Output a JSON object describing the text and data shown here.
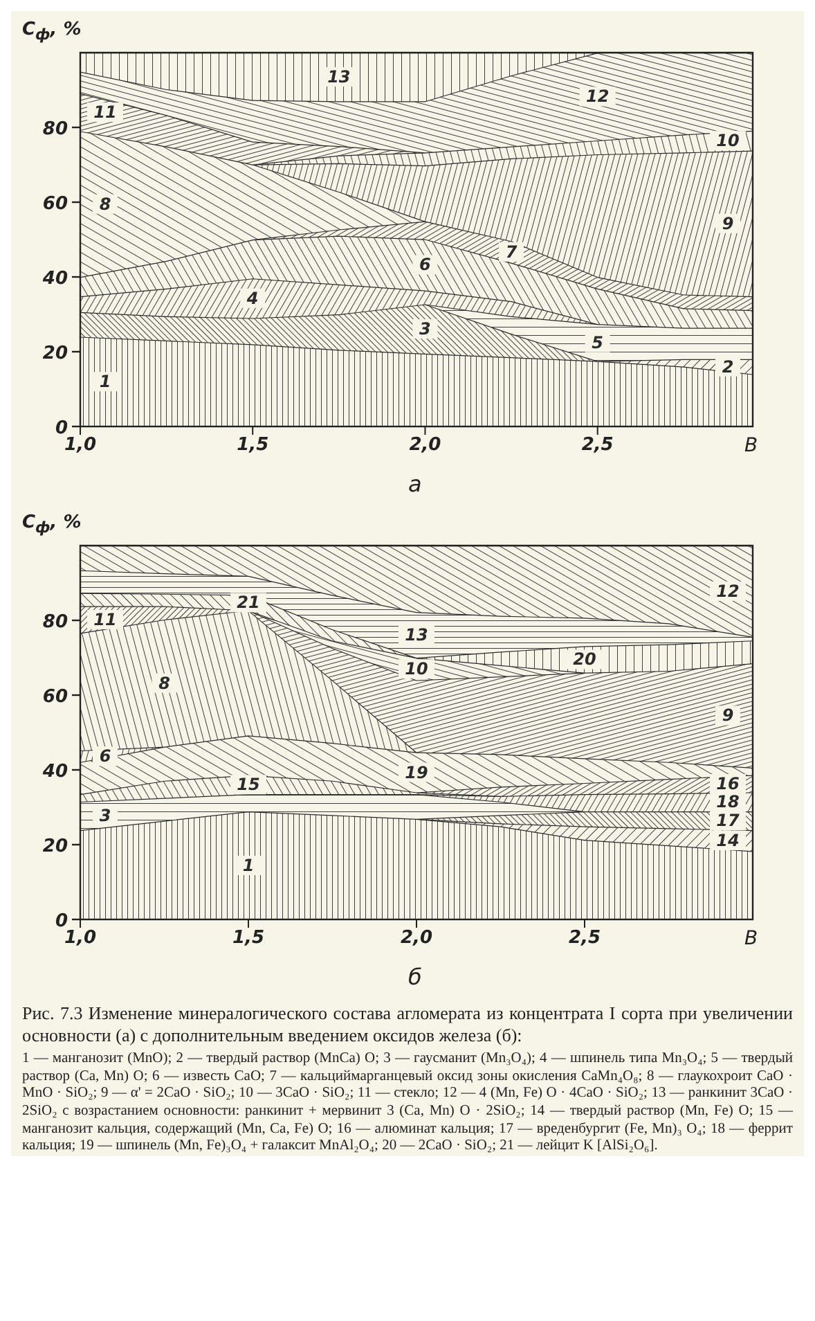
{
  "chart_data": [
    {
      "type": "area",
      "stacked": true,
      "subtitle": "а",
      "xlabel": "В",
      "ylabel": "C$_{ф}$, %",
      "x": [
        1,
        1.25,
        1.5,
        1.75,
        2,
        2.25,
        2.5,
        2.75,
        2.95
      ],
      "xlim": [
        1,
        2.95
      ],
      "xticks": [
        {
          "value": 1,
          "label": "1,0"
        },
        {
          "value": 1.5,
          "label": "1,5"
        },
        {
          "value": 2,
          "label": "2,0"
        },
        {
          "value": 2.5,
          "label": "2,5"
        }
      ],
      "ylim": [
        0,
        100
      ],
      "yticks": [
        0,
        20,
        40,
        60,
        80
      ],
      "series": [
        {
          "name": "1",
          "color": "#2b2b2b",
          "values": [
            24,
            23,
            22,
            20.5,
            19.5,
            18.5,
            17.5,
            16,
            14
          ]
        },
        {
          "name": "2",
          "color": "#2b2b2b",
          "values": [
            null,
            null,
            null,
            null,
            null,
            null,
            0,
            2,
            4
          ]
        },
        {
          "name": "3",
          "color": "#2b2b2b",
          "values": [
            6.6,
            6.5,
            7,
            9.5,
            13.2,
            6.3,
            0,
            null,
            null
          ]
        },
        {
          "name": "5",
          "color": "#2b2b2b",
          "values": [
            null,
            null,
            null,
            null,
            0,
            4.7,
            9.9,
            8.4,
            8.4
          ]
        },
        {
          "name": "4",
          "color": "#2b2b2b",
          "values": [
            4.2,
            7.4,
            10.6,
            8,
            3.7,
            4,
            0,
            null,
            null
          ]
        },
        {
          "name": "6",
          "color": "#2b2b2b",
          "values": [
            5.2,
            7.4,
            10.4,
            13,
            13.7,
            10.3,
            9.5,
            5.2,
            4.7
          ]
        },
        {
          "name": "7",
          "color": "#2b2b2b",
          "values": [
            null,
            null,
            0,
            1.7,
            4.8,
            5.8,
            3.1,
            3.7,
            3.7
          ]
        },
        {
          "name": "8",
          "color": "#2b2b2b",
          "values": [
            39,
            30.6,
            20.1,
            10.1,
            0,
            null,
            null,
            null,
            null
          ]
        },
        {
          "name": "9",
          "color": "#2b2b2b",
          "values": [
            null,
            null,
            0,
            7.6,
            14.9,
            22.1,
            32.8,
            38,
            39
          ]
        },
        {
          "name": "10",
          "color": "#2b2b2b",
          "values": [
            null,
            null,
            0,
            2.1,
            3.5,
            3.2,
            3.7,
            4.8,
            5.3
          ]
        },
        {
          "name": "11",
          "color": "#2b2b2b",
          "values": [
            10.1,
            8.4,
            6.1,
            2.5,
            0,
            null,
            null,
            null,
            null
          ]
        },
        {
          "name": "12",
          "color": "#2b2b2b",
          "values": [
            5.8,
            6.9,
            11.1,
            12,
            13.7,
            19,
            23.5,
            21.9,
            20.9
          ]
        },
        {
          "name": "13",
          "color": "#2b2b2b",
          "values": [
            5.1,
            9.8,
            12.7,
            13,
            13,
            6.1,
            0,
            null,
            null
          ]
        }
      ]
    },
    {
      "type": "area",
      "stacked": true,
      "subtitle": "б",
      "xlabel": "В",
      "ylabel": "C$_{ф}$, %",
      "x": [
        1,
        1.25,
        1.5,
        1.75,
        2,
        2.25,
        2.5,
        2.75,
        3
      ],
      "xlim": [
        1,
        3
      ],
      "xticks": [
        {
          "value": 1,
          "label": "1,0"
        },
        {
          "value": 1.5,
          "label": "1,5"
        },
        {
          "value": 2,
          "label": "2,0"
        },
        {
          "value": 2.5,
          "label": "2,5"
        }
      ],
      "ylim": [
        0,
        100
      ],
      "yticks": [
        0,
        20,
        40,
        60,
        80
      ],
      "series": [
        {
          "name": "1",
          "color": "#2b2b2b",
          "values": [
            23.9,
            26.4,
            28.9,
            27.9,
            26.9,
            24.9,
            21.3,
            19.8,
            18.3
          ]
        },
        {
          "name": "14",
          "color": "#2b2b2b",
          "values": [
            null,
            null,
            null,
            null,
            0,
            0.8,
            3.6,
            4.6,
            5.6
          ]
        },
        {
          "name": "17",
          "color": "#2b2b2b",
          "values": [
            null,
            null,
            null,
            null,
            0,
            2.2,
            4,
            4.5,
            5
          ]
        },
        {
          "name": "3",
          "color": "#2b2b2b",
          "values": [
            7.6,
            6.1,
            4.6,
            5.6,
            6.6,
            3.6,
            0,
            null,
            null
          ]
        },
        {
          "name": "18",
          "color": "#2b2b2b",
          "values": [
            null,
            null,
            null,
            null,
            0,
            1.5,
            4.6,
            4.8,
            5.1
          ]
        },
        {
          "name": "15",
          "color": "#2b2b2b",
          "values": [
            2,
            4.6,
            5.1,
            3.6,
            0.5,
            0,
            null,
            null,
            null
          ]
        },
        {
          "name": "16",
          "color": "#2b2b2b",
          "values": [
            null,
            null,
            null,
            null,
            0,
            2.5,
            3,
            3.9,
            4.6
          ]
        },
        {
          "name": "19",
          "color": "#2b2b2b",
          "values": [
            8.6,
            9.1,
            10.6,
            10.1,
            10.7,
            8.7,
            6.6,
            4.5,
            2
          ]
        },
        {
          "name": "6",
          "color": "#2b2b2b",
          "values": [
            3.1,
            0,
            null,
            null,
            null,
            null,
            null,
            null,
            null
          ]
        },
        {
          "name": "8",
          "color": "#2b2b2b",
          "values": [
            31.4,
            34,
            33.5,
            16.8,
            0,
            null,
            null,
            null,
            null
          ]
        },
        {
          "name": "9",
          "color": "#2b2b2b",
          "values": [
            null,
            null,
            0,
            8.6,
            19.3,
            20.8,
            22.9,
            24.4,
            27.9
          ]
        },
        {
          "name": "10",
          "color": "#2b2b2b",
          "values": [
            null,
            null,
            0,
            2,
            6,
            3,
            0,
            null,
            null
          ]
        },
        {
          "name": "20",
          "color": "#2b2b2b",
          "values": [
            null,
            null,
            null,
            null,
            0,
            3.6,
            7.1,
            7.1,
            6.1
          ]
        },
        {
          "name": "11",
          "color": "#2b2b2b",
          "values": [
            7.2,
            3.6,
            0,
            null,
            null,
            null,
            null,
            null,
            null
          ]
        },
        {
          "name": "21",
          "color": "#2b2b2b",
          "values": [
            3.5,
            3.3,
            4.1,
            3,
            0,
            null,
            null,
            null,
            null
          ]
        },
        {
          "name": "13",
          "color": "#2b2b2b",
          "values": [
            6.1,
            5.5,
            5.1,
            9.2,
            12.2,
            9.6,
            7.6,
            5.6,
            1
          ]
        },
        {
          "name": "12",
          "color": "#2b2b2b",
          "values": [
            6.6,
            7.4,
            8.1,
            13.2,
            17.8,
            18.8,
            19.3,
            20.8,
            24.4
          ]
        }
      ],
      "annotations": [
        "Рис. 7.3 Изменение минералогического состава агломерата из концентрата I сорта при увеличении основности (а) с дополнительным введением оксидов железа (б):",
        "1 — манганозит (MnO); 2 — твердый раствор (MnCa) O; 3 — гаусманит (Mn₃O₄); 4 — шпинель типа Mn₃O₄; 5 — твердый раствор (Ca, Mn) O; 6 — известь CaO; 7 — кальциймарганцевый оксид зоны окисления CaMn₄O₈; 8 — глаукохроит CaO · MnO · SiO₂; 9 — α' = 2CaO · SiO₂; 10 — 3CaO · SiO₂; 11 — стекло; 12 — 4 (Mn, Fe) O · 4CaO · SiO₂; 13 — ранкинит 3CaO · 2SiO₂ с возрастанием основности: ранкинит + мервинит 3 (Ca, Mn) O · 2SiO₂; 14 — твердый раствор (Mn, Fe) O; 15 — манганозит кальция, содержащий (Mn, Ca, Fe) O; 16 — алюминат кальция; 17 — вреденбургит (Fe, Mn)₃ O₄; 18 — феррит кальция; 19 — шпинель (Mn, Fe)₃O₄ + галаксит MnAl₂O₄; 20 — 2CaO · SiO₂; 21 — лейцит K [AlSi₂O₆]."
      ]
    }
  ]
}
